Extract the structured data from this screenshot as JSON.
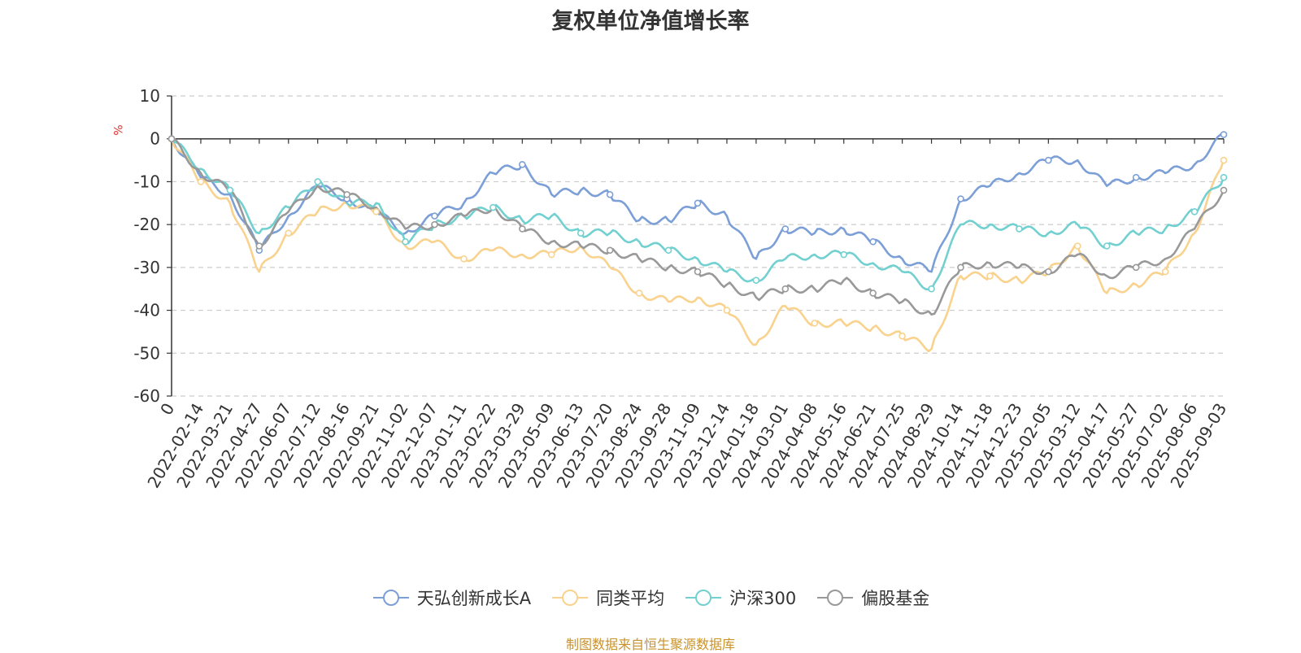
{
  "chart_data": {
    "type": "line",
    "title": "复权单位净值增长率",
    "ylabel": "%",
    "ylim": [
      -60,
      10
    ],
    "yticks": [
      10,
      0,
      -10,
      -20,
      -30,
      -40,
      -50,
      -60
    ],
    "grid": true,
    "legend_position": "bottom",
    "x_labels": [
      "0",
      "2022-02-14",
      "2022-03-21",
      "2022-04-27",
      "2022-06-07",
      "2022-07-12",
      "2022-08-16",
      "2022-09-21",
      "2022-11-02",
      "2022-12-07",
      "2023-01-11",
      "2023-02-22",
      "2023-03-29",
      "2023-05-09",
      "2023-06-13",
      "2023-07-20",
      "2023-08-24",
      "2023-09-28",
      "2023-11-09",
      "2023-12-14",
      "2024-01-18",
      "2024-03-01",
      "2024-04-08",
      "2024-05-16",
      "2024-06-21",
      "2024-07-25",
      "2024-08-29",
      "2024-10-14",
      "2024-11-18",
      "2024-12-23",
      "2025-02-05",
      "2025-03-12",
      "2025-04-17",
      "2025-05-27",
      "2025-07-02",
      "2025-08-06",
      "2025-09-03"
    ],
    "series": [
      {
        "name": "天弘创新成长A",
        "color": "#7b9fd6",
        "values": [
          0,
          -9,
          -13,
          -26,
          -18,
          -11,
          -14,
          -17,
          -22,
          -18,
          -15,
          -8,
          -6,
          -13,
          -12,
          -13,
          -19,
          -19,
          -15,
          -18,
          -28,
          -21,
          -22,
          -21,
          -24,
          -28,
          -31,
          -14,
          -11,
          -8,
          -5,
          -5,
          -11,
          -9,
          -8,
          -6,
          1
        ]
      },
      {
        "name": "同类平均",
        "color": "#f9d28e",
        "values": [
          0,
          -10,
          -15,
          -31,
          -22,
          -17,
          -15,
          -17,
          -25,
          -24,
          -28,
          -26,
          -27,
          -27,
          -25,
          -30,
          -36,
          -38,
          -37,
          -40,
          -48,
          -39,
          -43,
          -43,
          -44,
          -46,
          -49,
          -32,
          -32,
          -33,
          -31,
          -25,
          -36,
          -34,
          -31,
          -22,
          -5
        ]
      },
      {
        "name": "沪深300",
        "color": "#72d0d0",
        "values": [
          0,
          -7,
          -12,
          -22,
          -16,
          -10,
          -15,
          -15,
          -24,
          -20,
          -18,
          -16,
          -19,
          -18,
          -22,
          -22,
          -24,
          -26,
          -28,
          -31,
          -33,
          -28,
          -27,
          -27,
          -29,
          -31,
          -35,
          -20,
          -20,
          -21,
          -22,
          -20,
          -25,
          -22,
          -21,
          -17,
          -9
        ]
      },
      {
        "name": "偏股基金",
        "color": "#999999",
        "values": [
          0,
          -8,
          -12,
          -25,
          -17,
          -11,
          -13,
          -16,
          -21,
          -20,
          -18,
          -16,
          -21,
          -24,
          -25,
          -26,
          -28,
          -30,
          -31,
          -34,
          -37,
          -35,
          -35,
          -33,
          -36,
          -38,
          -41,
          -30,
          -29,
          -30,
          -31,
          -27,
          -32,
          -30,
          -28,
          -21,
          -12
        ]
      }
    ]
  },
  "source_note": "制图数据来自恒生聚源数据库"
}
